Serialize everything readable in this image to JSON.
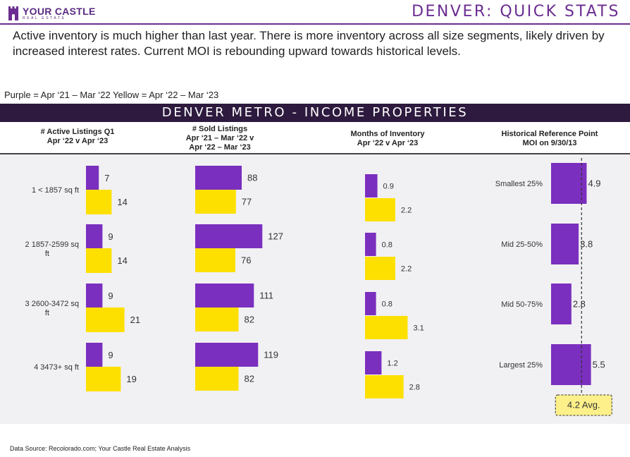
{
  "header": {
    "brand_name": "YOUR CASTLE",
    "brand_sub": "REAL ESTATE",
    "title": "DENVER: QUICK STATS"
  },
  "summary": "Active inventory is much higher than last year.  There is more inventory across all size segments, likely driven by increased interest rates. Current MOI is rebounding upward towards historical levels.",
  "legend_note": "Purple = Apr ‘21 – Mar ‘22 Yellow = Apr ‘22 – Mar ‘23",
  "band_title": "DENVER METRO - INCOME PROPERTIES",
  "columns": {
    "active": "# Active Listings Q1\nApr ‘22 v Apr ‘23",
    "sold": "# Sold Listings\nApr ‘21 – Mar ‘22 v\nApr ‘22 – Mar ‘23",
    "moi": "Months of Inventory\nApr ‘22 v Apr ‘23",
    "hist": "Historical Reference Point\nMOI on 9/30/13"
  },
  "footer": "Data Source: Recolorado.com; Your Castle Real Estate Analysis",
  "colors": {
    "purple": "#7b2fbe",
    "yellow": "#fde000",
    "band": "#2d1a3e",
    "title": "#6b2d91"
  },
  "chart_data": [
    {
      "type": "bar",
      "orientation": "horizontal",
      "title": "# Active Listings Q1 Apr ‘22 v Apr ‘23",
      "categories": [
        "1 < 1857 sq ft",
        "2 1857-2599  sq ft",
        "3 2600-3472 sq ft",
        "4 3473+ sq ft"
      ],
      "series": [
        {
          "name": "Apr ‘21 – Mar ‘22",
          "color": "purple",
          "values": [
            7,
            9,
            9,
            9
          ]
        },
        {
          "name": "Apr ‘22 – Mar ‘23",
          "color": "yellow",
          "values": [
            14,
            14,
            21,
            19
          ]
        }
      ]
    },
    {
      "type": "bar",
      "orientation": "horizontal",
      "title": "# Sold Listings Apr ‘21 – Mar ‘22 v Apr ‘22 – Mar ‘23",
      "categories": [
        "1 < 1857 sq ft",
        "2 1857-2599  sq ft",
        "3 2600-3472 sq ft",
        "4 3473+ sq ft"
      ],
      "series": [
        {
          "name": "Apr ‘21 – Mar ‘22",
          "color": "purple",
          "values": [
            88,
            127,
            111,
            119
          ]
        },
        {
          "name": "Apr ‘22 – Mar ‘23",
          "color": "yellow",
          "values": [
            77,
            76,
            82,
            82
          ]
        }
      ]
    },
    {
      "type": "bar",
      "orientation": "horizontal",
      "title": "Months of Inventory Apr ‘22 v Apr ‘23",
      "categories": [
        "1 < 1857 sq ft",
        "2 1857-2599  sq ft",
        "3 2600-3472 sq ft",
        "4 3473+ sq ft"
      ],
      "series": [
        {
          "name": "Apr ‘22",
          "color": "purple",
          "values": [
            0.9,
            0.8,
            0.8,
            1.2
          ]
        },
        {
          "name": "Apr ‘23",
          "color": "yellow",
          "values": [
            2.2,
            2.2,
            3.1,
            2.8
          ]
        }
      ]
    },
    {
      "type": "bar",
      "orientation": "horizontal",
      "title": "Historical Reference Point MOI on 9/30/13",
      "categories": [
        "Smallest 25%",
        "Mid 25-50%",
        "Mid 50-75%",
        "Largest 25%"
      ],
      "series": [
        {
          "color": "purple",
          "values": [
            4.9,
            3.8,
            2.8,
            5.5
          ]
        }
      ],
      "reference_line": {
        "value": 4.2,
        "label": "4.2 Avg."
      }
    }
  ]
}
